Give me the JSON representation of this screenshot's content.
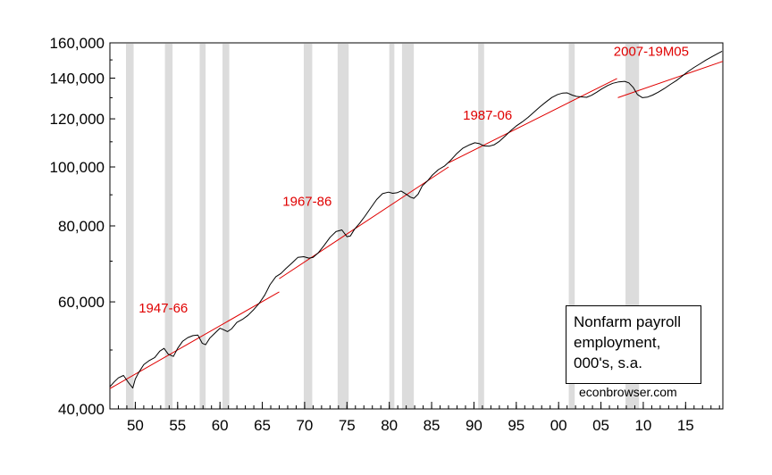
{
  "chart_data": {
    "type": "line",
    "title": "",
    "xlabel": "",
    "ylabel": "",
    "y_scale": "log",
    "xlim": [
      1947.0,
      2019.4
    ],
    "ylim": [
      40000,
      160000
    ],
    "grid": false,
    "legend": {
      "placement": "bottom-right",
      "lines": [
        "Nonfarm payroll",
        "employment,",
        "000's, s.a."
      ]
    },
    "credit": "econbrowser.com",
    "x_ticks": [
      {
        "value": 1950,
        "label": "50"
      },
      {
        "value": 1955,
        "label": "55"
      },
      {
        "value": 1960,
        "label": "60"
      },
      {
        "value": 1965,
        "label": "65"
      },
      {
        "value": 1970,
        "label": "70"
      },
      {
        "value": 1975,
        "label": "75"
      },
      {
        "value": 1980,
        "label": "80"
      },
      {
        "value": 1985,
        "label": "85"
      },
      {
        "value": 1990,
        "label": "90"
      },
      {
        "value": 1995,
        "label": "95"
      },
      {
        "value": 2000,
        "label": "00"
      },
      {
        "value": 2005,
        "label": "05"
      },
      {
        "value": 2010,
        "label": "10"
      },
      {
        "value": 2015,
        "label": "15"
      }
    ],
    "y_ticks": [
      {
        "value": 40000,
        "label": "40,000"
      },
      {
        "value": 60000,
        "label": "60,000"
      },
      {
        "value": 80000,
        "label": "80,000"
      },
      {
        "value": 100000,
        "label": "100,000"
      },
      {
        "value": 120000,
        "label": "120,000"
      },
      {
        "value": 140000,
        "label": "140,000"
      },
      {
        "value": 160000,
        "label": "160,000"
      }
    ],
    "recessions": [
      [
        1948.9,
        1949.8
      ],
      [
        1953.5,
        1954.4
      ],
      [
        1957.6,
        1958.3
      ],
      [
        1960.3,
        1961.1
      ],
      [
        1969.9,
        1970.9
      ],
      [
        1973.9,
        1975.2
      ],
      [
        1980.0,
        1980.6
      ],
      [
        1981.5,
        1982.9
      ],
      [
        1990.5,
        1991.2
      ],
      [
        2001.2,
        2001.9
      ],
      [
        2007.9,
        2009.5
      ]
    ],
    "series": [
      {
        "color": "#000000",
        "x": [
          1947.0,
          1947.5,
          1948.0,
          1948.6,
          1949.2,
          1949.7,
          1950.0,
          1950.4,
          1951.0,
          1951.6,
          1952.3,
          1952.9,
          1953.4,
          1953.9,
          1954.5,
          1955.0,
          1955.6,
          1956.2,
          1956.8,
          1957.4,
          1957.9,
          1958.3,
          1958.8,
          1959.4,
          1960.0,
          1960.4,
          1960.9,
          1961.4,
          1962.0,
          1962.7,
          1963.3,
          1964.0,
          1964.6,
          1965.3,
          1965.9,
          1966.6,
          1967.2,
          1967.8,
          1968.5,
          1969.2,
          1969.9,
          1970.5,
          1971.0,
          1971.6,
          1972.3,
          1973.0,
          1973.7,
          1974.4,
          1975.0,
          1975.4,
          1975.9,
          1976.5,
          1977.1,
          1977.8,
          1978.5,
          1979.2,
          1979.9,
          1980.4,
          1980.9,
          1981.4,
          1981.9,
          1982.5,
          1982.9,
          1983.4,
          1983.9,
          1984.5,
          1985.1,
          1985.8,
          1986.5,
          1987.2,
          1988.0,
          1988.7,
          1989.5,
          1990.1,
          1990.6,
          1991.2,
          1991.8,
          1992.4,
          1993.0,
          1993.7,
          1994.4,
          1995.0,
          1995.7,
          1996.4,
          1997.1,
          1997.8,
          1998.5,
          1999.2,
          1999.9,
          2000.5,
          2001.0,
          2001.6,
          2002.1,
          2002.7,
          2003.3,
          2003.9,
          2004.5,
          2005.1,
          2005.8,
          2006.4,
          2007.1,
          2007.8,
          2008.3,
          2008.8,
          2009.3,
          2009.9,
          2010.5,
          2011.1,
          2011.8,
          2012.5,
          2013.2,
          2013.9,
          2014.6,
          2015.3,
          2016.0,
          2016.7,
          2017.4,
          2018.1,
          2018.8,
          2019.3
        ],
        "values": [
          43500,
          44300,
          45000,
          45400,
          44200,
          43300,
          44800,
          45900,
          47300,
          48000,
          48600,
          49800,
          50300,
          49200,
          48800,
          50300,
          51700,
          52400,
          52800,
          52900,
          51300,
          51000,
          52300,
          53300,
          54300,
          54000,
          53600,
          54200,
          55500,
          56200,
          57000,
          58300,
          59600,
          61600,
          64000,
          66000,
          66800,
          68100,
          69500,
          71000,
          71200,
          70800,
          71000,
          72200,
          74300,
          76600,
          78300,
          78800,
          76800,
          77000,
          79000,
          80800,
          82900,
          85600,
          88400,
          90400,
          90900,
          90500,
          90700,
          91300,
          90400,
          89200,
          88800,
          90200,
          93100,
          94800,
          97000,
          99000,
          100300,
          102400,
          105300,
          107400,
          108800,
          109600,
          109300,
          108300,
          108200,
          108800,
          110200,
          112500,
          114900,
          116800,
          118600,
          120700,
          123100,
          125600,
          127900,
          130100,
          131600,
          132300,
          132400,
          131300,
          130600,
          130400,
          130200,
          131200,
          132700,
          134400,
          136100,
          137300,
          138000,
          138300,
          137500,
          135200,
          131600,
          130000,
          130300,
          131300,
          132800,
          134600,
          136700,
          138700,
          141100,
          143600,
          145800,
          147800,
          149900,
          151800,
          153700,
          155000
        ]
      }
    ],
    "trend_lines": [
      {
        "label": "1947-66",
        "color": "#e00000",
        "x": [
          1947.0,
          1967.0
        ],
        "values": [
          43200,
          62300
        ],
        "label_at": [
          1950.4,
          57600
        ]
      },
      {
        "label": "1967-86",
        "color": "#e00000",
        "x": [
          1967.0,
          1987.0
        ],
        "values": [
          65500,
          100000
        ],
        "label_at": [
          1967.4,
          86300
        ]
      },
      {
        "label": "1987-06",
        "color": "#e00000",
        "x": [
          1987.0,
          2006.9
        ],
        "values": [
          101600,
          139800
        ],
        "label_at": [
          1988.7,
          119700
        ]
      },
      {
        "label": "2007-19M05",
        "color": "#e00000",
        "x": [
          2007.0,
          2019.4
        ],
        "values": [
          130000,
          149200
        ],
        "label_at": [
          2006.5,
          152400
        ]
      }
    ]
  }
}
